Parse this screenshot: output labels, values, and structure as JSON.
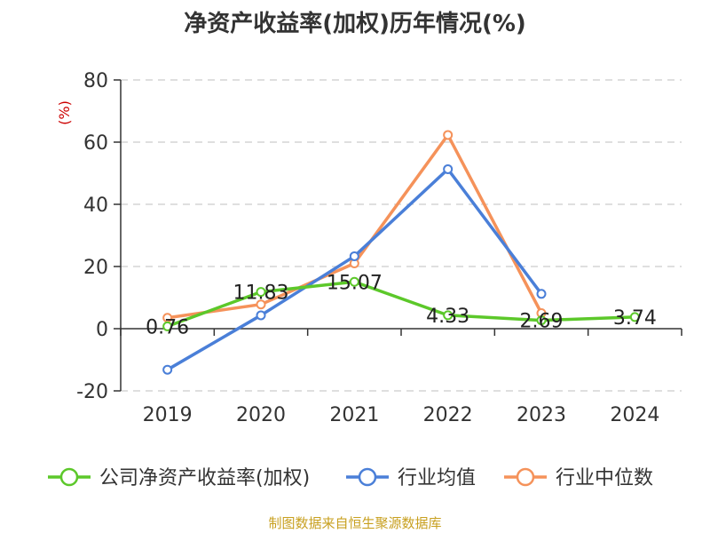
{
  "chart_data": {
    "type": "line",
    "title": "净资产收益率(加权)历年情况(%)",
    "ylabel": "(%)",
    "xlabel": "",
    "categories": [
      "2019",
      "2020",
      "2021",
      "2022",
      "2023",
      "2024"
    ],
    "ylim": [
      -20,
      80
    ],
    "yticks": [
      80,
      60,
      40,
      20,
      0,
      -20
    ],
    "grid": true,
    "legend_position": "bottom",
    "series": [
      {
        "name": "公司净资产收益率(加权)",
        "color": "#5cc82a",
        "values": [
          0.76,
          11.83,
          15.07,
          4.33,
          2.69,
          3.74
        ],
        "labels": [
          "0.76",
          "11.83",
          "15.07",
          "4.33",
          "2.69",
          "3.74"
        ]
      },
      {
        "name": "行业均值",
        "color": "#4a7fd8",
        "values": [
          -13.2,
          4.3,
          23.3,
          51.3,
          11.2,
          null
        ]
      },
      {
        "name": "行业中位数",
        "color": "#f5925a",
        "values": [
          3.5,
          7.8,
          21.0,
          62.3,
          5.0,
          null
        ]
      }
    ]
  },
  "source": "制图数据来自恒生聚源数据库"
}
